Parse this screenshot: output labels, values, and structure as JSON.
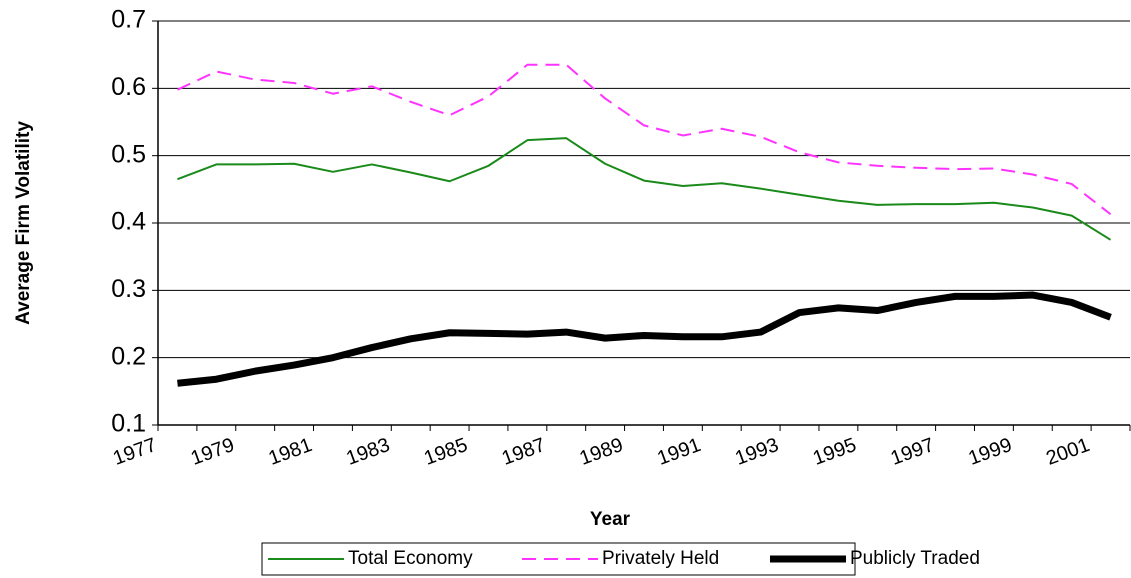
{
  "chart_data": {
    "type": "line",
    "x_label": "Year",
    "y_label": "Average Firm Volatility",
    "categories": [
      "1977",
      null,
      "1979",
      null,
      "1981",
      null,
      "1983",
      null,
      "1985",
      null,
      "1987",
      null,
      "1989",
      null,
      "1991",
      null,
      "1993",
      null,
      "1995",
      null,
      "1997",
      null,
      "1999",
      null,
      "2001"
    ],
    "ylim": [
      0.1,
      0.7
    ],
    "yticks": [
      0.1,
      0.2,
      0.3,
      0.4,
      0.5,
      0.6,
      0.7
    ],
    "grid": true,
    "legend": "bottom",
    "series": [
      {
        "name": "Total Economy",
        "color": "#1a8a1a",
        "line_style": "solid",
        "line_width": 2,
        "values": [
          0.465,
          0.487,
          0.487,
          0.488,
          0.476,
          0.487,
          0.475,
          0.462,
          0.485,
          0.523,
          0.526,
          0.488,
          0.463,
          0.455,
          0.459,
          0.451,
          0.442,
          0.433,
          0.427,
          0.428,
          0.428,
          0.43,
          0.423,
          0.411,
          0.375
        ]
      },
      {
        "name": "Privately Held",
        "color": "#ff33ff",
        "line_style": "dashed",
        "line_width": 2,
        "values": [
          0.598,
          0.625,
          0.613,
          0.608,
          0.592,
          0.603,
          0.58,
          0.56,
          0.588,
          0.635,
          0.635,
          0.585,
          0.545,
          0.53,
          0.54,
          0.528,
          0.505,
          0.49,
          0.485,
          0.482,
          0.48,
          0.481,
          0.472,
          0.458,
          0.413
        ]
      },
      {
        "name": "Publicly Traded",
        "color": "#000000",
        "line_style": "solid",
        "line_width": 7,
        "values": [
          0.162,
          0.168,
          0.18,
          0.189,
          0.2,
          0.215,
          0.228,
          0.237,
          0.236,
          0.235,
          0.238,
          0.229,
          0.233,
          0.231,
          0.231,
          0.238,
          0.267,
          0.274,
          0.27,
          0.282,
          0.291,
          0.291,
          0.293,
          0.282,
          0.26
        ]
      }
    ]
  }
}
